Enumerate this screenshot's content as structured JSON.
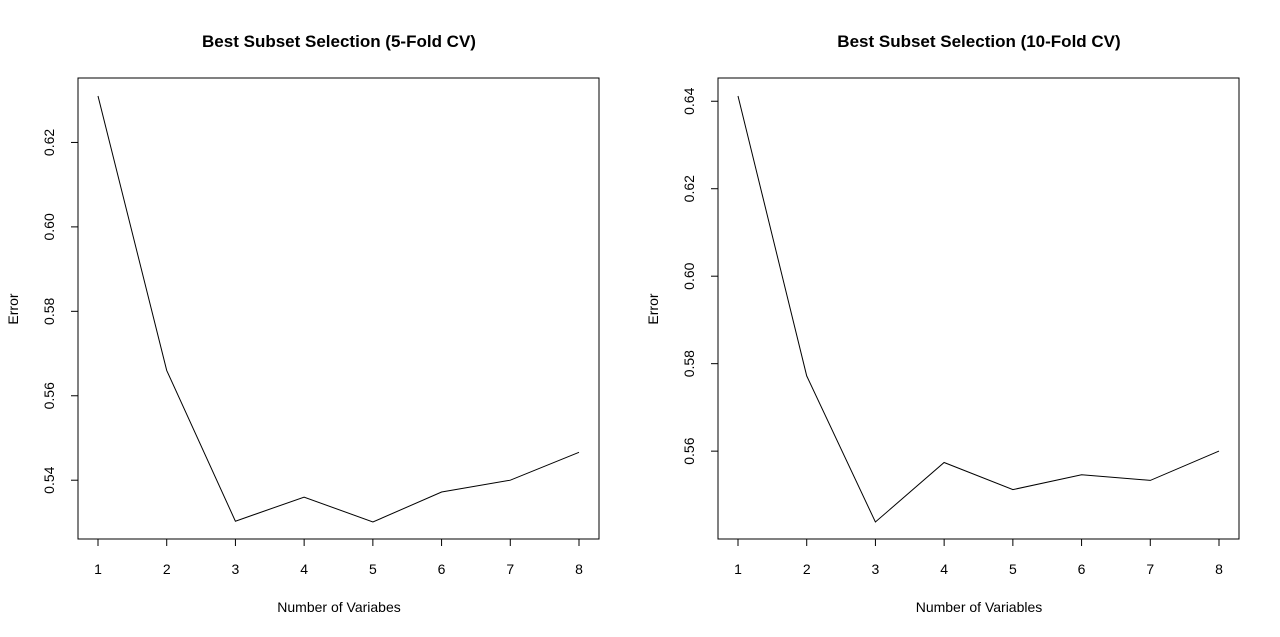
{
  "chart_data": [
    {
      "type": "line",
      "title": "Best Subset Selection (5-Fold CV)",
      "xlabel": "Number of Variabes",
      "ylabel": "Error",
      "x": [
        1,
        2,
        3,
        4,
        5,
        6,
        7,
        8
      ],
      "series": [
        {
          "values": [
            0.631,
            0.566,
            0.5303,
            0.536,
            0.5301,
            0.5372,
            0.54,
            0.5466
          ]
        }
      ],
      "xticks": [
        "1",
        "2",
        "3",
        "4",
        "5",
        "6",
        "7",
        "8"
      ],
      "yticks": [
        0.54,
        0.56,
        0.58,
        0.6,
        0.62
      ],
      "ytick_labels": [
        "0.54",
        "0.56",
        "0.58",
        "0.60",
        "0.62"
      ],
      "xlim": [
        1,
        8
      ],
      "ylim": [
        0.5301,
        0.631
      ],
      "grid": false,
      "line_color": "#000000"
    },
    {
      "type": "line",
      "title": "Best Subset Selection (10-Fold CV)",
      "xlabel": "Number of Variables",
      "ylabel": "Error",
      "x": [
        1,
        2,
        3,
        4,
        5,
        6,
        7,
        8
      ],
      "series": [
        {
          "values": [
            0.6412,
            0.5772,
            0.5438,
            0.5574,
            0.5512,
            0.5546,
            0.5533,
            0.56
          ]
        }
      ],
      "xticks": [
        "1",
        "2",
        "3",
        "4",
        "5",
        "6",
        "7",
        "8"
      ],
      "yticks": [
        0.56,
        0.58,
        0.6,
        0.62,
        0.64
      ],
      "ytick_labels": [
        "0.56",
        "0.58",
        "0.60",
        "0.62",
        "0.64"
      ],
      "xlim": [
        1,
        8
      ],
      "ylim": [
        0.5438,
        0.6412
      ],
      "grid": false,
      "line_color": "#000000"
    }
  ]
}
